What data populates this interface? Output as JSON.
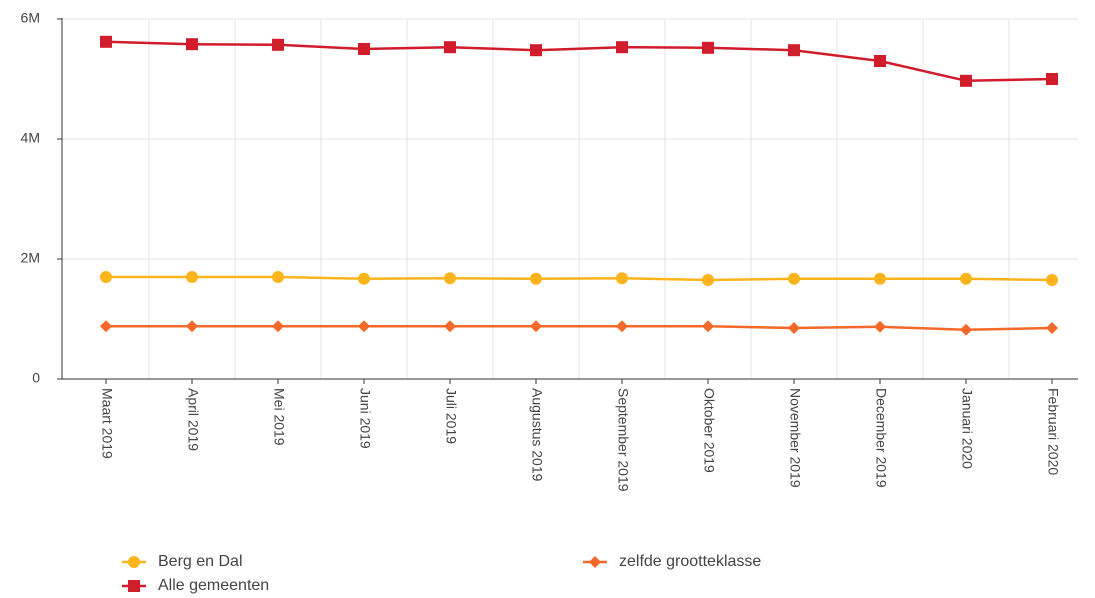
{
  "chart_data": {
    "type": "line",
    "categories": [
      "Maart 2019",
      "April 2019",
      "Mei 2019",
      "Juni 2019",
      "Juli 2019",
      "Augustus 2019",
      "September 2019",
      "Oktober 2019",
      "November 2019",
      "December 2019",
      "Januari 2020",
      "Februari 2020"
    ],
    "series": [
      {
        "name": "Berg en Dal",
        "color": "#fbb41c",
        "marker": "circle",
        "values": [
          1700000,
          1700000,
          1700000,
          1670000,
          1680000,
          1670000,
          1680000,
          1650000,
          1670000,
          1670000,
          1670000,
          1650000
        ]
      },
      {
        "name": "zelfde grootteklasse",
        "color": "#f4682a",
        "marker": "diamond",
        "values": [
          880000,
          880000,
          880000,
          880000,
          880000,
          880000,
          880000,
          880000,
          850000,
          870000,
          820000,
          850000
        ]
      },
      {
        "name": "Alle gemeenten",
        "color": "#d01c2b",
        "marker": "square",
        "values": [
          5620000,
          5580000,
          5570000,
          5500000,
          5530000,
          5480000,
          5530000,
          5520000,
          5480000,
          5300000,
          4970000,
          5000000
        ]
      }
    ],
    "ylim": [
      0,
      6000000
    ],
    "yticks": [
      0,
      {
        "value": 2000000,
        "label": "2M"
      },
      {
        "value": 4000000,
        "label": "4M"
      },
      {
        "value": 6000000,
        "label": "6M"
      }
    ],
    "grid": true,
    "legend": "bottom"
  }
}
